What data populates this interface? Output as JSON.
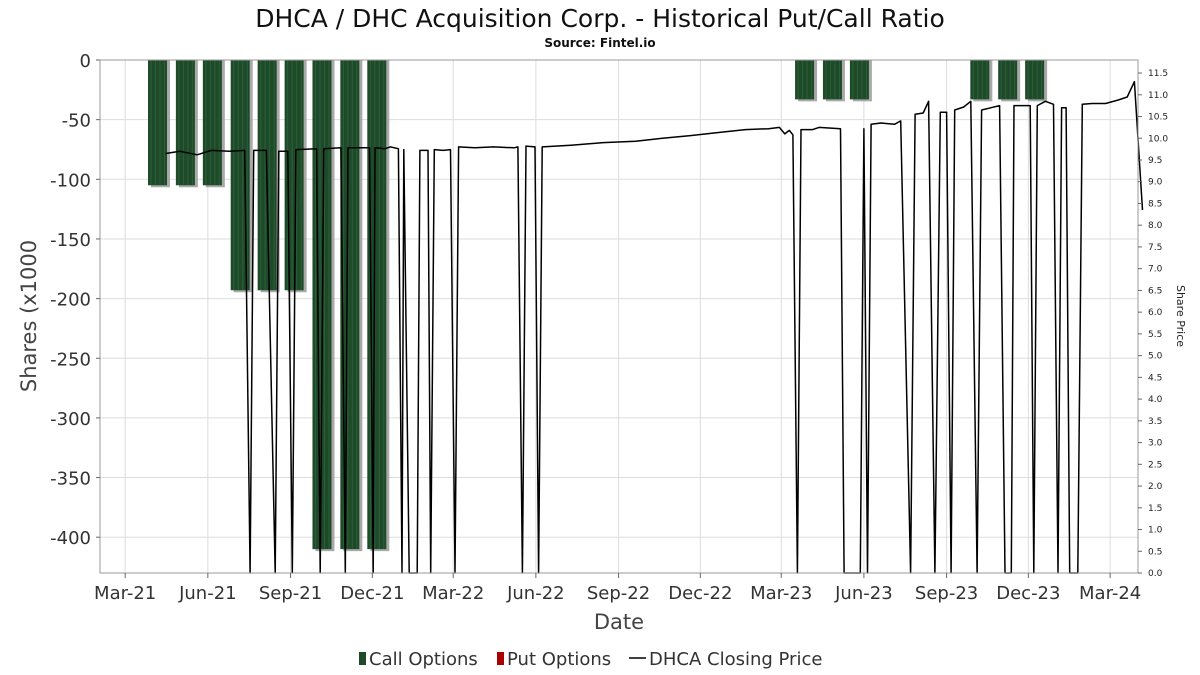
{
  "chart_data": {
    "type": "bar",
    "title": "DHCA / DHC Acquisition Corp. - Historical Put/Call Ratio",
    "subtitle": "Source: Fintel.io",
    "xlabel": "Date",
    "ylabel": "Shares (x1000",
    "y2label": "Share Price",
    "xlim": [
      "2021-02-01",
      "2024-04-01"
    ],
    "ylim": [
      -430,
      0
    ],
    "y2lim": [
      0,
      11.8
    ],
    "yticks": [
      0,
      -50,
      -100,
      -150,
      -200,
      -250,
      -300,
      -350,
      -400
    ],
    "y2ticks": [
      0.0,
      0.5,
      1.0,
      1.5,
      2.0,
      2.5,
      3.0,
      3.5,
      4.0,
      4.5,
      5.0,
      5.5,
      6.0,
      6.5,
      7.0,
      7.5,
      8.0,
      8.5,
      9.0,
      9.5,
      10.0,
      10.5,
      11.0,
      11.5
    ],
    "xticks": [
      {
        "label": "Mar-21",
        "date": "2021-03-01"
      },
      {
        "label": "Jun-21",
        "date": "2021-06-01"
      },
      {
        "label": "Sep-21",
        "date": "2021-09-01"
      },
      {
        "label": "Dec-21",
        "date": "2021-12-01"
      },
      {
        "label": "Mar-22",
        "date": "2022-03-01"
      },
      {
        "label": "Jun-22",
        "date": "2022-06-01"
      },
      {
        "label": "Sep-22",
        "date": "2022-09-01"
      },
      {
        "label": "Dec-22",
        "date": "2022-12-01"
      },
      {
        "label": "Mar-23",
        "date": "2023-03-01"
      },
      {
        "label": "Jun-23",
        "date": "2023-06-01"
      },
      {
        "label": "Sep-23",
        "date": "2023-09-01"
      },
      {
        "label": "Dec-23",
        "date": "2023-12-01"
      },
      {
        "label": "Mar-24",
        "date": "2024-03-01"
      }
    ],
    "grid": true,
    "legend_position": "bottom",
    "colors": {
      "call": "#1f4a2a",
      "put": "#aa0000",
      "price": "#000000"
    },
    "series": [
      {
        "name": "Call Options",
        "type": "bar",
        "points": [
          {
            "date": "2021-04-06",
            "value": -105
          },
          {
            "date": "2021-05-07",
            "value": -105
          },
          {
            "date": "2021-06-06",
            "value": -105
          },
          {
            "date": "2021-07-07",
            "value": -193
          },
          {
            "date": "2021-08-06",
            "value": -193
          },
          {
            "date": "2021-09-05",
            "value": -193
          },
          {
            "date": "2021-10-06",
            "value": -410
          },
          {
            "date": "2021-11-06",
            "value": -410
          },
          {
            "date": "2021-12-06",
            "value": -410
          },
          {
            "date": "2023-03-27",
            "value": -33
          },
          {
            "date": "2023-04-27",
            "value": -33
          },
          {
            "date": "2023-05-27",
            "value": -33
          },
          {
            "date": "2023-10-08",
            "value": -33
          },
          {
            "date": "2023-11-08",
            "value": -33
          },
          {
            "date": "2023-12-08",
            "value": -33
          }
        ]
      },
      {
        "name": "Put Options",
        "type": "bar",
        "points": []
      },
      {
        "name": "DHCA Closing Price",
        "type": "line",
        "points": [
          [
            "2021-04-15",
            9.65
          ],
          [
            "2021-05-01",
            9.7
          ],
          [
            "2021-05-20",
            9.62
          ],
          [
            "2021-06-05",
            9.72
          ],
          [
            "2021-06-25",
            9.7
          ],
          [
            "2021-07-12",
            9.72
          ],
          [
            "2021-07-18",
            0.0
          ],
          [
            "2021-07-22",
            9.72
          ],
          [
            "2021-08-05",
            9.72
          ],
          [
            "2021-08-15",
            0.0
          ],
          [
            "2021-08-19",
            9.7
          ],
          [
            "2021-08-29",
            9.7
          ],
          [
            "2021-09-03",
            0.0
          ],
          [
            "2021-09-07",
            9.74
          ],
          [
            "2021-09-30",
            9.76
          ],
          [
            "2021-10-04",
            0.0
          ],
          [
            "2021-10-08",
            9.76
          ],
          [
            "2021-10-27",
            9.78
          ],
          [
            "2021-11-01",
            0.0
          ],
          [
            "2021-11-04",
            9.78
          ],
          [
            "2021-11-28",
            9.78
          ],
          [
            "2021-12-02",
            0.0
          ],
          [
            "2021-12-04",
            9.78
          ],
          [
            "2021-12-15",
            9.76
          ],
          [
            "2021-12-21",
            9.8
          ],
          [
            "2021-12-30",
            9.76
          ],
          [
            "2022-01-03",
            0.0
          ],
          [
            "2022-01-05",
            9.74
          ],
          [
            "2022-01-11",
            0.0
          ],
          [
            "2022-01-20",
            0.0
          ],
          [
            "2022-01-23",
            9.72
          ],
          [
            "2022-02-01",
            9.72
          ],
          [
            "2022-02-04",
            0.0
          ],
          [
            "2022-02-08",
            9.74
          ],
          [
            "2022-02-18",
            9.72
          ],
          [
            "2022-02-26",
            9.74
          ],
          [
            "2022-03-03",
            0.0
          ],
          [
            "2022-03-07",
            9.8
          ],
          [
            "2022-03-25",
            9.78
          ],
          [
            "2022-04-15",
            9.8
          ],
          [
            "2022-05-08",
            9.78
          ],
          [
            "2022-05-12",
            9.8
          ],
          [
            "2022-05-17",
            0.0
          ],
          [
            "2022-05-21",
            9.82
          ],
          [
            "2022-05-31",
            9.8
          ],
          [
            "2022-06-04",
            0.0
          ],
          [
            "2022-06-08",
            9.8
          ],
          [
            "2022-07-10",
            9.84
          ],
          [
            "2022-08-15",
            9.9
          ],
          [
            "2022-09-20",
            9.93
          ],
          [
            "2022-10-20",
            10.0
          ],
          [
            "2022-11-20",
            10.06
          ],
          [
            "2022-12-20",
            10.13
          ],
          [
            "2023-01-20",
            10.2
          ],
          [
            "2023-02-15",
            10.22
          ],
          [
            "2023-02-27",
            10.25
          ],
          [
            "2023-03-05",
            10.1
          ],
          [
            "2023-03-10",
            10.18
          ],
          [
            "2023-03-14",
            10.08
          ],
          [
            "2023-03-19",
            0.0
          ],
          [
            "2023-03-23",
            10.2
          ],
          [
            "2023-04-05",
            10.2
          ],
          [
            "2023-04-12",
            10.25
          ],
          [
            "2023-05-06",
            10.22
          ],
          [
            "2023-05-10",
            0.0
          ],
          [
            "2023-05-28",
            0.0
          ],
          [
            "2023-06-01",
            10.22
          ],
          [
            "2023-06-05",
            0.0
          ],
          [
            "2023-06-09",
            10.32
          ],
          [
            "2023-06-20",
            10.35
          ],
          [
            "2023-07-05",
            10.32
          ],
          [
            "2023-07-12",
            10.4
          ],
          [
            "2023-07-23",
            0.0
          ],
          [
            "2023-07-28",
            10.55
          ],
          [
            "2023-08-06",
            10.58
          ],
          [
            "2023-08-12",
            10.85
          ],
          [
            "2023-08-19",
            0.0
          ],
          [
            "2023-08-25",
            10.6
          ],
          [
            "2023-09-01",
            10.6
          ],
          [
            "2023-09-06",
            0.0
          ],
          [
            "2023-09-10",
            10.65
          ],
          [
            "2023-09-20",
            10.72
          ],
          [
            "2023-09-28",
            10.85
          ],
          [
            "2023-10-05",
            0.0
          ],
          [
            "2023-10-10",
            10.65
          ],
          [
            "2023-10-20",
            10.7
          ],
          [
            "2023-10-30",
            10.75
          ],
          [
            "2023-11-05",
            0.0
          ],
          [
            "2023-11-12",
            0.0
          ],
          [
            "2023-11-15",
            10.75
          ],
          [
            "2023-12-03",
            10.75
          ],
          [
            "2023-12-07",
            0.0
          ],
          [
            "2023-12-11",
            10.75
          ],
          [
            "2023-12-20",
            10.85
          ],
          [
            "2023-12-29",
            10.78
          ],
          [
            "2024-01-03",
            0.0
          ],
          [
            "2024-01-07",
            10.7
          ],
          [
            "2024-01-12",
            10.7
          ],
          [
            "2024-01-16",
            0.0
          ],
          [
            "2024-01-25",
            0.0
          ],
          [
            "2024-01-30",
            10.78
          ],
          [
            "2024-02-10",
            10.8
          ],
          [
            "2024-02-25",
            10.8
          ],
          [
            "2024-03-10",
            10.88
          ],
          [
            "2024-03-20",
            10.95
          ],
          [
            "2024-03-28",
            11.3
          ],
          [
            "2024-04-06",
            8.35
          ]
        ]
      }
    ]
  }
}
